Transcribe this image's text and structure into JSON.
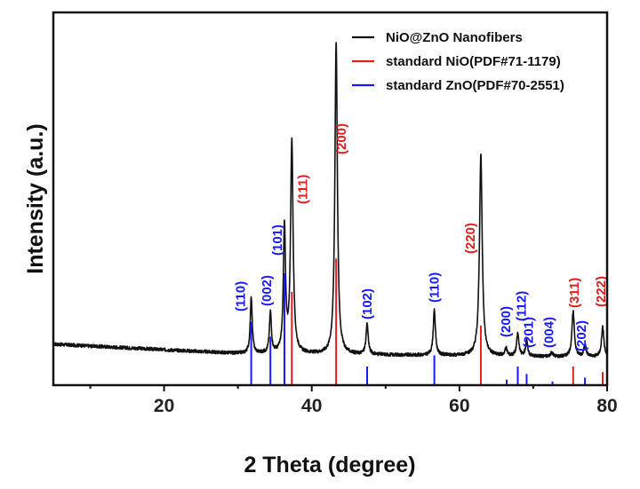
{
  "chart_data": {
    "type": "line",
    "title": "",
    "xlabel": "2 Theta (degree)",
    "ylabel": "Intensity (a.u.)",
    "xlim": [
      5,
      80
    ],
    "ylim": [
      0,
      100
    ],
    "xticks": [
      20,
      40,
      60,
      80
    ],
    "grid": false,
    "legend_position": "top-right",
    "colors": {
      "pattern": "#111111",
      "nio": "#e02020",
      "zno": "#1a1aff"
    },
    "series": [
      {
        "name": "NiO@ZnO Nanofibers",
        "kind": "line",
        "color": "#111111",
        "baseline": [
          [
            5,
            11
          ],
          [
            30,
            8.5
          ],
          [
            80,
            7.5
          ]
        ],
        "peaks": [
          {
            "x": 31.8,
            "h": 15,
            "w": 0.16
          },
          {
            "x": 34.4,
            "h": 11,
            "w": 0.16
          },
          {
            "x": 36.3,
            "h": 34,
            "w": 0.17
          },
          {
            "x": 37.3,
            "h": 57,
            "w": 0.2
          },
          {
            "x": 43.3,
            "h": 84,
            "w": 0.2
          },
          {
            "x": 47.5,
            "h": 8,
            "w": 0.18
          },
          {
            "x": 56.6,
            "h": 12,
            "w": 0.18
          },
          {
            "x": 62.9,
            "h": 54,
            "w": 0.22
          },
          {
            "x": 66.3,
            "h": 2,
            "w": 0.18
          },
          {
            "x": 67.9,
            "h": 6,
            "w": 0.18
          },
          {
            "x": 69.1,
            "h": 4,
            "w": 0.18
          },
          {
            "x": 72.5,
            "h": 1,
            "w": 0.2
          },
          {
            "x": 75.4,
            "h": 12,
            "w": 0.2
          },
          {
            "x": 77.0,
            "h": 3,
            "w": 0.2
          },
          {
            "x": 79.4,
            "h": 8,
            "w": 0.2
          }
        ]
      },
      {
        "name": "standard NiO(PDF#71-1179)",
        "kind": "sticks",
        "color": "#e02020",
        "sticks": [
          {
            "x": 37.3,
            "h": 25,
            "label": "(111)"
          },
          {
            "x": 43.3,
            "h": 34,
            "label": "(200)"
          },
          {
            "x": 62.9,
            "h": 16,
            "label": "(220)"
          },
          {
            "x": 75.4,
            "h": 5,
            "label": "(311)"
          },
          {
            "x": 79.4,
            "h": 3.5,
            "label": "(222)"
          }
        ]
      },
      {
        "name": "standard ZnO(PDF#70-2551)",
        "kind": "sticks",
        "color": "#1a1aff",
        "sticks": [
          {
            "x": 31.8,
            "h": 17,
            "label": "(110)"
          },
          {
            "x": 34.4,
            "h": 13,
            "label": "(002)"
          },
          {
            "x": 36.3,
            "h": 30,
            "label": "(101)"
          },
          {
            "x": 47.5,
            "h": 5,
            "label": "(102)"
          },
          {
            "x": 56.6,
            "h": 8,
            "label": "(110)"
          },
          {
            "x": 66.4,
            "h": 1.5,
            "label": "(200)"
          },
          {
            "x": 67.9,
            "h": 5,
            "label": "(112)"
          },
          {
            "x": 69.1,
            "h": 3,
            "label": "(201)"
          },
          {
            "x": 72.6,
            "h": 1,
            "label": "(004)"
          },
          {
            "x": 77.0,
            "h": 2,
            "label": "(202)"
          }
        ]
      }
    ]
  }
}
